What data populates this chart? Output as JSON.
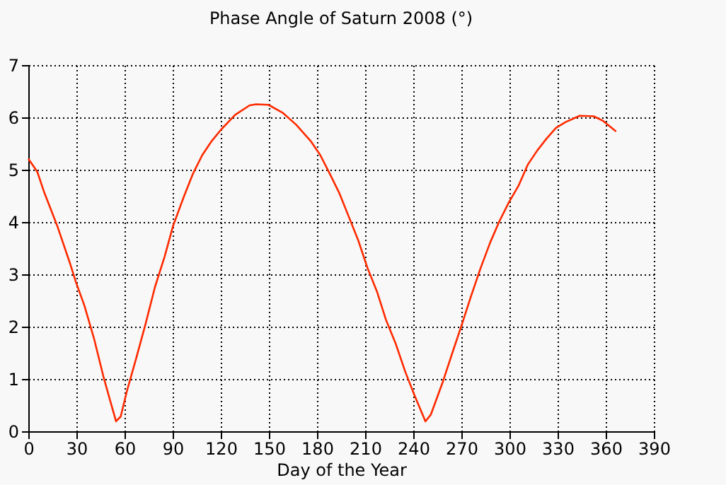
{
  "chart_data": {
    "type": "line",
    "title": "Phase Angle of Saturn 2008 (°)",
    "xlabel": "Day of the Year",
    "xlim": [
      0,
      390
    ],
    "xticks": [
      0,
      30,
      60,
      90,
      120,
      150,
      180,
      210,
      240,
      270,
      300,
      330,
      360,
      390
    ],
    "ylim": [
      0,
      7
    ],
    "yticks": [
      0,
      1,
      2,
      3,
      4,
      5,
      6,
      7
    ],
    "grid": true,
    "marker": "none",
    "line_style": "solid",
    "series": [
      {
        "color": "#ff2a00",
        "x": [
          0,
          5.6,
          10,
          18,
          26,
          29.7,
          35,
          41,
          46.8,
          51,
          54.7,
          57.6,
          61.5,
          67.4,
          73,
          79,
          85,
          90.3,
          96.8,
          102.6,
          108.5,
          114.4,
          120.3,
          129,
          138,
          142,
          149.7,
          158.5,
          167,
          176,
          182,
          188,
          193.8,
          199.7,
          205.6,
          211.5,
          217.4,
          223,
          229,
          235,
          240.9,
          247.6,
          251,
          258.5,
          264.4,
          270.3,
          276,
          282,
          288,
          293.8,
          299.7,
          305.6,
          311.5,
          317.4,
          323,
          329,
          335,
          343.8,
          352.6,
          358.5,
          366.5
        ],
        "values": [
          5.21,
          4.96,
          4.56,
          3.93,
          3.21,
          2.85,
          2.4,
          1.77,
          1.05,
          0.59,
          0.19,
          0.28,
          0.77,
          1.41,
          2.04,
          2.76,
          3.34,
          3.93,
          4.47,
          4.92,
          5.28,
          5.55,
          5.77,
          6.05,
          6.23,
          6.25,
          6.24,
          6.09,
          5.86,
          5.55,
          5.28,
          4.92,
          4.56,
          4.11,
          3.66,
          3.12,
          2.67,
          2.13,
          1.68,
          1.14,
          0.68,
          0.19,
          0.32,
          0.95,
          1.5,
          2.04,
          2.58,
          3.12,
          3.61,
          4.02,
          4.38,
          4.69,
          5.1,
          5.37,
          5.59,
          5.8,
          5.91,
          6.03,
          6.02,
          5.93,
          5.73
        ]
      }
    ]
  }
}
